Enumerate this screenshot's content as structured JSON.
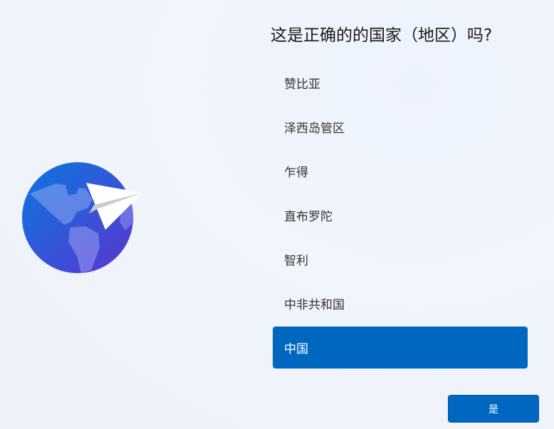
{
  "title": "这是正确的的国家（地区）吗?",
  "regions": [
    "赞比亚",
    "泽西岛管区",
    "乍得",
    "直布罗陀",
    "智利",
    "中非共和国",
    "中国"
  ],
  "selected_index": 6,
  "yes_button": "是",
  "colors": {
    "accent": "#0067c0"
  },
  "illustration": "globe-paper-plane-icon"
}
